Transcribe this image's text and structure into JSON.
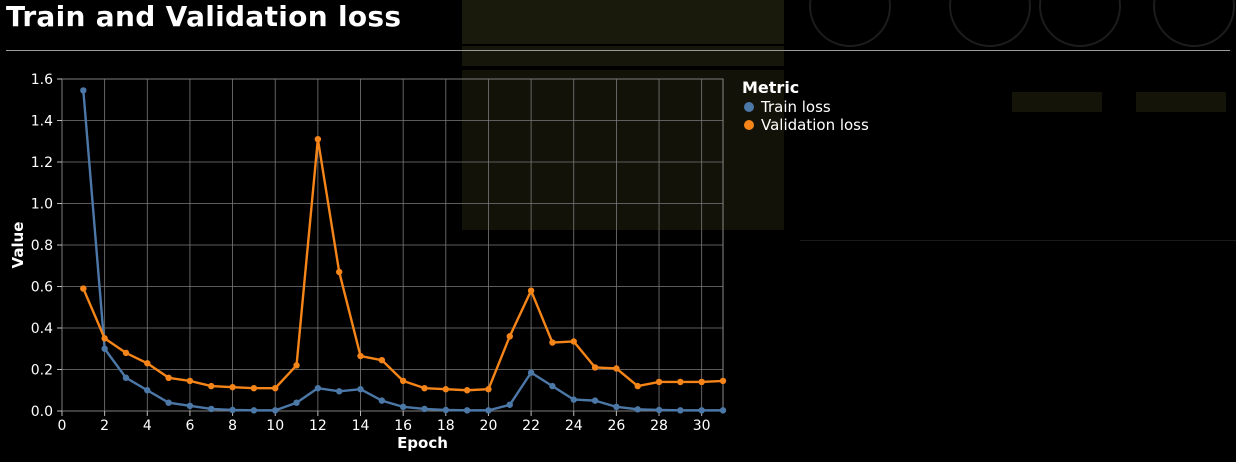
{
  "page": {
    "title": "Train and Validation loss"
  },
  "chart_data": {
    "type": "line",
    "title": "Train and Validation loss",
    "xlabel": "Epoch",
    "ylabel": "Value",
    "xlim": [
      0,
      31
    ],
    "ylim": [
      0,
      1.6
    ],
    "x_ticks": [
      0,
      2,
      4,
      6,
      8,
      10,
      12,
      14,
      16,
      18,
      20,
      22,
      24,
      26,
      28,
      30
    ],
    "y_ticks": [
      0.0,
      0.2,
      0.4,
      0.6,
      0.8,
      1.0,
      1.2,
      1.4,
      1.6
    ],
    "y_tick_labels": [
      "0.0",
      "0.2",
      "0.4",
      "0.6",
      "0.8",
      "1.0",
      "1.2",
      "1.4",
      "1.6"
    ],
    "grid": true,
    "legend_title": "Metric",
    "legend_position": "right",
    "x": [
      1,
      2,
      3,
      4,
      5,
      6,
      7,
      8,
      9,
      10,
      11,
      12,
      13,
      14,
      15,
      16,
      17,
      18,
      19,
      20,
      21,
      22,
      23,
      24,
      25,
      26,
      27,
      28,
      29,
      30,
      31
    ],
    "series": [
      {
        "name": "Train loss",
        "color": "#4c78a8",
        "values": [
          1.545,
          0.3,
          0.16,
          0.1,
          0.04,
          0.025,
          0.01,
          0.005,
          0.003,
          0.003,
          0.04,
          0.11,
          0.095,
          0.105,
          0.05,
          0.02,
          0.01,
          0.005,
          0.003,
          0.003,
          0.03,
          0.185,
          0.12,
          0.055,
          0.05,
          0.02,
          0.008,
          0.005,
          0.003,
          0.003,
          0.003
        ]
      },
      {
        "name": "Validation loss",
        "color": "#f58518",
        "values": [
          0.59,
          0.35,
          0.28,
          0.23,
          0.16,
          0.145,
          0.12,
          0.115,
          0.11,
          0.11,
          0.22,
          1.31,
          0.67,
          0.265,
          0.245,
          0.145,
          0.11,
          0.105,
          0.1,
          0.105,
          0.36,
          0.58,
          0.33,
          0.335,
          0.21,
          0.205,
          0.12,
          0.14,
          0.14,
          0.14,
          0.145
        ]
      }
    ]
  }
}
